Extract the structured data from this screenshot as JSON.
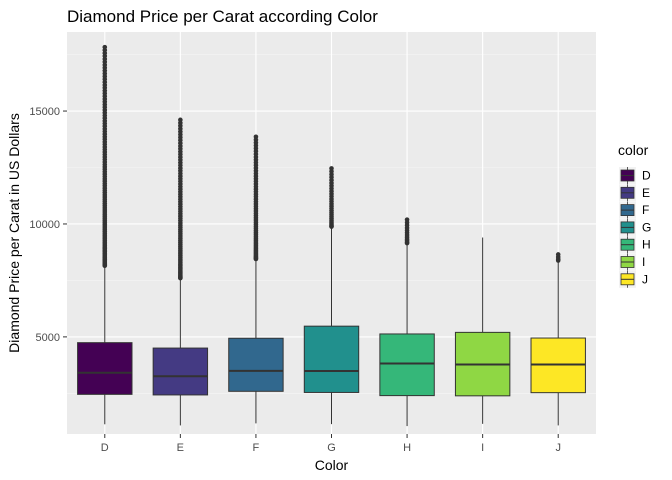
{
  "chart_data": {
    "type": "boxplot",
    "title": "Diamond Price per Carat according Color",
    "xlabel": "Color",
    "ylabel": "Diamond Price per Carat in US Dollars",
    "categories": [
      "D",
      "E",
      "F",
      "G",
      "H",
      "I",
      "J"
    ],
    "ylim": [
      700,
      18500
    ],
    "yticks": [
      5000,
      10000,
      15000
    ],
    "grid": true,
    "legend": {
      "title": "color",
      "position": "right",
      "entries": [
        "D",
        "E",
        "F",
        "G",
        "H",
        "I",
        "J"
      ]
    },
    "colors": {
      "D": "#440154",
      "E": "#443a83",
      "F": "#31688e",
      "G": "#21908d",
      "H": "#35b779",
      "I": "#8fd744",
      "J": "#fde725"
    },
    "panel_background": "#ebebeb",
    "series": [
      {
        "name": "D",
        "whisker_low": 1130,
        "q1": 2455,
        "median": 3410,
        "q3": 4745,
        "whisker_high": 8150,
        "outlier_max": 17830
      },
      {
        "name": "E",
        "whisker_low": 1080,
        "q1": 2430,
        "median": 3255,
        "q3": 4505,
        "whisker_high": 7600,
        "outlier_max": 14610
      },
      {
        "name": "F",
        "whisker_low": 1170,
        "q1": 2590,
        "median": 3495,
        "q3": 4940,
        "whisker_high": 8450,
        "outlier_max": 13860
      },
      {
        "name": "G",
        "whisker_low": 1140,
        "q1": 2540,
        "median": 3490,
        "q3": 5475,
        "whisker_high": 9880,
        "outlier_max": 12460
      },
      {
        "name": "H",
        "whisker_low": 1050,
        "q1": 2400,
        "median": 3820,
        "q3": 5130,
        "whisker_high": 9150,
        "outlier_max": 10190
      },
      {
        "name": "I",
        "whisker_low": 1150,
        "q1": 2390,
        "median": 3780,
        "q3": 5200,
        "whisker_high": 9400,
        "outlier_max": null
      },
      {
        "name": "J",
        "whisker_low": 1080,
        "q1": 2530,
        "median": 3780,
        "q3": 4950,
        "whisker_high": 8380,
        "outlier_max": 8650
      }
    ]
  }
}
